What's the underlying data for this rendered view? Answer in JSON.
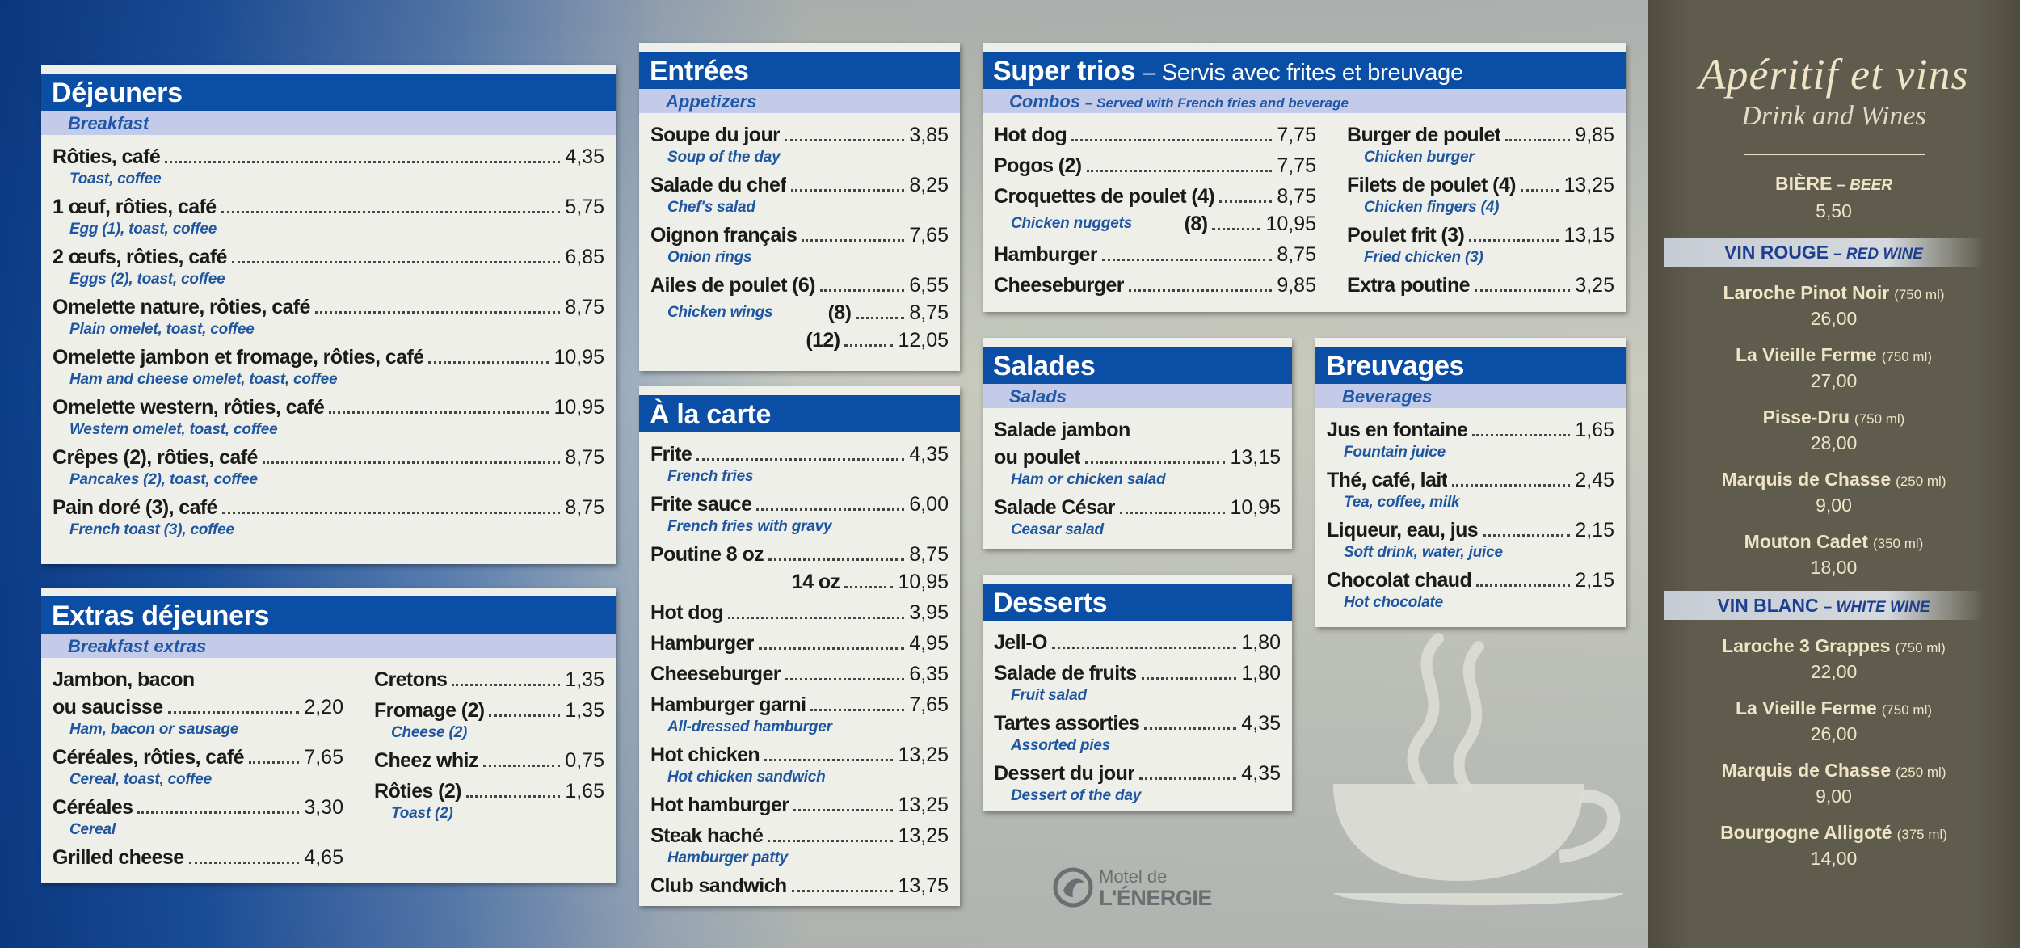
{
  "sections": [
    {
      "title": "Déjeuners",
      "subtitle": "Breakfast",
      "columns": [
        [
          {
            "name": "Rôties, café",
            "desc": "Toast, coffee",
            "price": "4,35"
          },
          {
            "name": "1 œuf, rôties, café",
            "desc": "Egg (1), toast, coffee",
            "price": "5,75"
          },
          {
            "name": "2 œufs, rôties, café",
            "desc": "Eggs (2), toast, coffee",
            "price": "6,85"
          },
          {
            "name": "Omelette nature, rôties, café",
            "desc": "Plain omelet, toast, coffee",
            "price": "8,75"
          },
          {
            "name": "Omelette jambon et fromage, rôties, café",
            "desc": "Ham and cheese omelet, toast, coffee",
            "price": "10,95"
          },
          {
            "name": "Omelette western, rôties, café",
            "desc": "Western omelet, toast, coffee",
            "price": "10,95"
          },
          {
            "name": "Crêpes (2), rôties, café",
            "desc": "Pancakes (2), toast, coffee",
            "price": "8,75"
          },
          {
            "name": "Pain doré (3), café",
            "desc": "French toast (3), coffee",
            "price": "8,75"
          }
        ]
      ]
    },
    {
      "title": "Extras déjeuners",
      "subtitle": "Breakfast extras",
      "columns": [
        [
          {
            "lead": "Jambon, bacon",
            "name": "ou saucisse",
            "desc": "Ham, bacon or sausage",
            "price": "2,20"
          },
          {
            "name": "Céréales, rôties, café",
            "desc": "Cereal, toast, coffee",
            "price": "7,65"
          },
          {
            "name": "Céréales",
            "desc": "Cereal",
            "price": "3,30"
          },
          {
            "name": "Grilled cheese",
            "price": "4,65"
          }
        ],
        [
          {
            "name": "Cretons",
            "price": "1,35"
          },
          {
            "name": "Fromage (2)",
            "desc": "Cheese (2)",
            "price": "1,35"
          },
          {
            "name": "Cheez whiz",
            "price": "0,75"
          },
          {
            "name": "Rôties (2)",
            "desc": "Toast (2)",
            "price": "1,65"
          }
        ]
      ]
    },
    {
      "title": "Entrées",
      "subtitle": "Appetizers",
      "columns": [
        [
          {
            "name": "Soupe du jour",
            "desc": "Soup of the day",
            "price": "3,85"
          },
          {
            "name": "Salade du chef",
            "desc": "Chef's salad",
            "price": "8,25"
          },
          {
            "name": "Oignon français",
            "desc": "Onion rings",
            "price": "7,65"
          },
          {
            "name": "Ailes de poulet (6)",
            "desc": "Chicken wings",
            "price": "6,55",
            "variants": [
              {
                "label": "(8)",
                "price": "8,75"
              },
              {
                "label": "(12)",
                "price": "12,05"
              }
            ]
          }
        ]
      ]
    },
    {
      "title": "À la carte",
      "columns": [
        [
          {
            "name": "Frite",
            "desc": "French fries",
            "price": "4,35"
          },
          {
            "name": "Frite sauce",
            "desc": "French fries with gravy",
            "price": "6,00"
          },
          {
            "name": "Poutine 8 oz",
            "price": "8,75",
            "variants": [
              {
                "label": "14 oz",
                "price": "10,95"
              }
            ]
          },
          {
            "name": "Hot dog",
            "price": "3,95"
          },
          {
            "name": "Hamburger",
            "price": "4,95"
          },
          {
            "name": "Cheeseburger",
            "price": "6,35"
          },
          {
            "name": "Hamburger garni",
            "desc": "All-dressed hamburger",
            "price": "7,65"
          },
          {
            "name": "Hot chicken",
            "desc": "Hot chicken sandwich",
            "price": "13,25"
          },
          {
            "name": "Hot hamburger",
            "price": "13,25"
          },
          {
            "name": "Steak haché",
            "desc": "Hamburger patty",
            "price": "13,25"
          },
          {
            "name": "Club sandwich",
            "price": "13,75"
          }
        ]
      ]
    },
    {
      "title": "Super trios",
      "title_note": "– Servis avec frites et breuvage",
      "subtitle": "Combos",
      "subtitle_note": "– Served with French fries and beverage",
      "columns": [
        [
          {
            "name": "Hot dog",
            "price": "7,75"
          },
          {
            "name": "Pogos (2)",
            "price": "7,75"
          },
          {
            "name": "Croquettes de poulet (4)",
            "desc": "Chicken nuggets",
            "price": "8,75",
            "variants": [
              {
                "label": "(8)",
                "price": "10,95"
              }
            ]
          },
          {
            "name": "Hamburger",
            "price": "8,75"
          },
          {
            "name": "Cheeseburger",
            "price": "9,85"
          }
        ],
        [
          {
            "name": "Burger de poulet",
            "desc": "Chicken burger",
            "price": "9,85"
          },
          {
            "name": "Filets de poulet (4)",
            "desc": "Chicken fingers (4)",
            "price": "13,25"
          },
          {
            "name": "Poulet frit (3)",
            "desc": "Fried chicken (3)",
            "price": "13,15"
          },
          {
            "name": "Extra poutine",
            "price": "3,25"
          }
        ]
      ]
    },
    {
      "title": "Salades",
      "subtitle": "Salads",
      "columns": [
        [
          {
            "lead": "Salade jambon",
            "name": "ou poulet",
            "desc": "Ham or chicken salad",
            "price": "13,15"
          },
          {
            "name": "Salade César",
            "desc": "Ceasar salad",
            "price": "10,95"
          }
        ]
      ]
    },
    {
      "title": "Desserts",
      "columns": [
        [
          {
            "name": "Jell-O",
            "price": "1,80"
          },
          {
            "name": "Salade de fruits",
            "desc": "Fruit salad",
            "price": "1,80"
          },
          {
            "name": "Tartes assorties",
            "desc": "Assorted pies",
            "price": "4,35"
          },
          {
            "name": "Dessert du jour",
            "desc": "Dessert of the day",
            "price": "4,35"
          }
        ]
      ]
    },
    {
      "title": "Breuvages",
      "subtitle": "Beverages",
      "columns": [
        [
          {
            "name": "Jus en fontaine",
            "desc": "Fountain juice",
            "price": "1,65"
          },
          {
            "name": "Thé, café, lait",
            "desc": "Tea, coffee, milk",
            "price": "2,45"
          },
          {
            "name": "Liqueur, eau, jus",
            "desc": "Soft drink, water, juice",
            "price": "2,15"
          },
          {
            "name": "Chocolat chaud",
            "desc": "Hot chocolate",
            "price": "2,15"
          }
        ]
      ]
    }
  ],
  "drinks": {
    "title": "Apéritif et vins",
    "subtitle": "Drink and Wines",
    "beer": {
      "name": "BIÈRE",
      "note": "– BEER",
      "price": "5,50"
    },
    "groups": [
      {
        "name": "VIN ROUGE",
        "note": "– RED WINE",
        "items": [
          {
            "name": "Laroche Pinot Noir",
            "size": "(750 ml)",
            "price": "26,00"
          },
          {
            "name": "La Vieille Ferme",
            "size": "(750 ml)",
            "price": "27,00"
          },
          {
            "name": "Pisse-Dru",
            "size": "(750 ml)",
            "price": "28,00"
          },
          {
            "name": "Marquis de Chasse",
            "size": "(250 ml)",
            "price": "9,00"
          },
          {
            "name": "Mouton Cadet",
            "size": "(350 ml)",
            "price": "18,00"
          }
        ]
      },
      {
        "name": "VIN BLANC",
        "note": "– WHITE WINE",
        "items": [
          {
            "name": "Laroche 3 Grappes",
            "size": "(750 ml)",
            "price": "22,00"
          },
          {
            "name": "La Vieille Ferme",
            "size": "(750 ml)",
            "price": "26,00"
          },
          {
            "name": "Marquis de Chasse",
            "size": "(250 ml)",
            "price": "9,00"
          },
          {
            "name": "Bourgogne Alligoté",
            "size": "(375 ml)",
            "price": "14,00"
          }
        ]
      }
    ]
  },
  "logo": {
    "line1": "Motel de",
    "line2": "L'ÉNERGIE"
  }
}
